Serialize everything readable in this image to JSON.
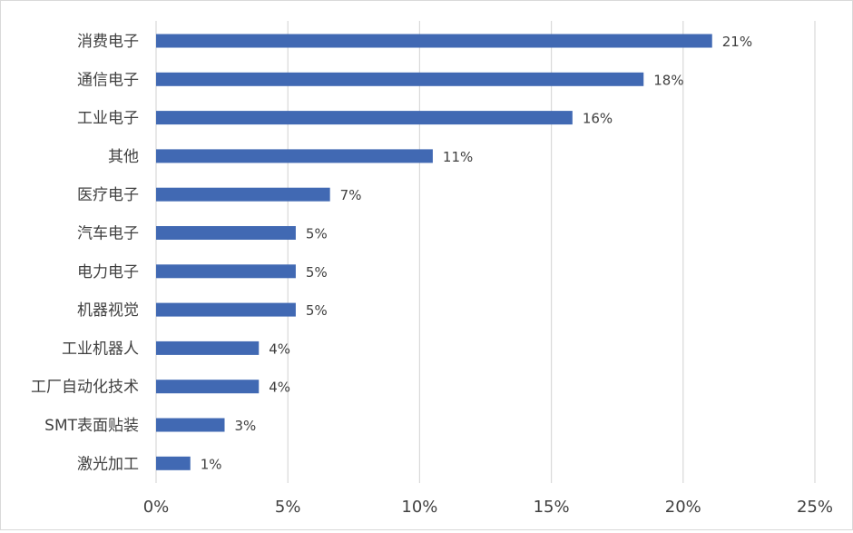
{
  "chart_data": {
    "type": "bar",
    "orientation": "horizontal",
    "categories": [
      "消费电子",
      "通信电子",
      "工业电子",
      "其他",
      "医疗电子",
      "汽车电子",
      "电力电子",
      "机器视觉",
      "工业机器人",
      "工厂自动化技术",
      "SMT表面贴装",
      "激光加工"
    ],
    "values": [
      21.1,
      18.5,
      15.8,
      10.5,
      6.6,
      5.3,
      5.3,
      5.3,
      3.9,
      3.9,
      2.6,
      1.3
    ],
    "value_labels": [
      "21%",
      "18%",
      "16%",
      "11%",
      "7%",
      "5%",
      "5%",
      "5%",
      "4%",
      "4%",
      "3%",
      "1%"
    ],
    "xlim": [
      0,
      25
    ],
    "x_ticks": [
      0,
      5,
      10,
      15,
      20,
      25
    ],
    "x_tick_labels": [
      "0%",
      "5%",
      "10%",
      "15%",
      "20%",
      "25%"
    ],
    "grid": "vertical",
    "legend": "none",
    "bar_color": "#4169b3",
    "grid_color": "#d9d9d9",
    "text_color": "#404040"
  }
}
